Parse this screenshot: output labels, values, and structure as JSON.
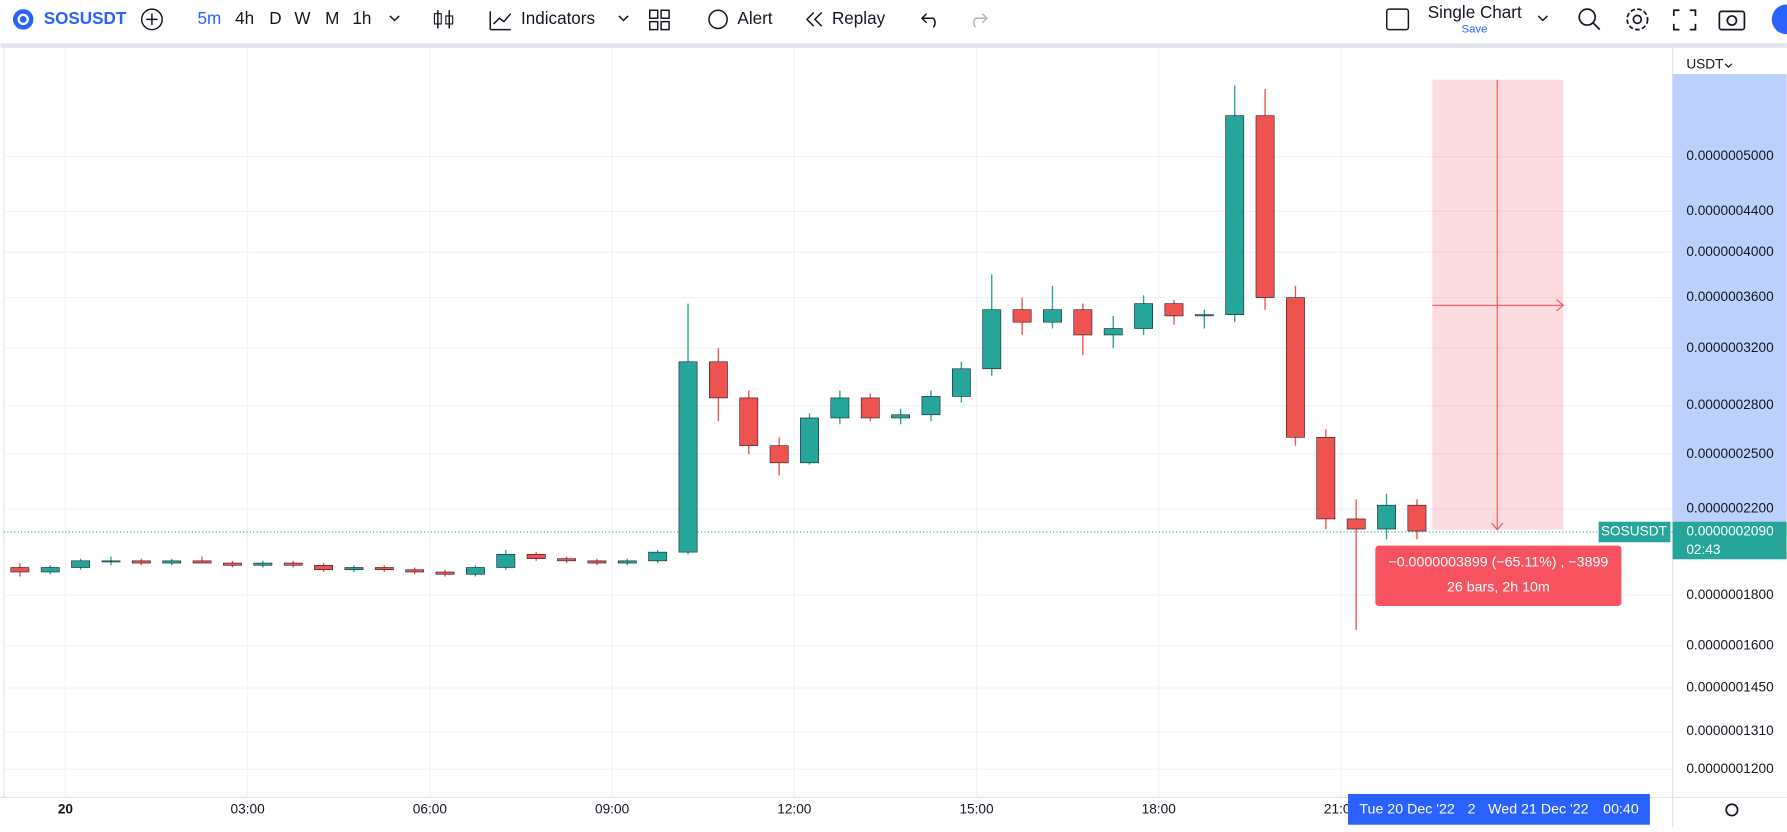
{
  "toolbar": {
    "symbol": "SOSUSDT",
    "intervals": [
      "5m",
      "4h",
      "D",
      "W",
      "M",
      "1h"
    ],
    "indicators": "Indicators",
    "alert": "Alert",
    "replay": "Replay",
    "layout": "Single Chart",
    "save": "Save"
  },
  "chart_data": {
    "type": "candlestick",
    "log_scale": true,
    "grid": true,
    "currency": "USDT",
    "up_color": "#26a69a",
    "down_color": "#ef5350",
    "x": [
      -1,
      -0.5,
      0,
      0.5,
      1,
      1.5,
      2,
      2.5,
      3,
      3.5,
      4,
      4.5,
      5,
      5.5,
      6,
      6.5,
      7,
      7.5,
      8,
      8.5,
      9,
      9.5,
      10,
      10.5,
      11,
      11.5,
      12,
      12.5,
      13,
      13.5,
      14,
      14.5,
      15,
      15.5,
      16,
      16.5,
      17,
      17.5,
      18,
      18.5,
      19,
      19.5,
      20,
      20.5,
      21,
      21.5,
      22
    ],
    "open": [
      1.92e-07,
      1.9e-07,
      1.92e-07,
      1.95e-07,
      1.95e-07,
      1.94e-07,
      1.95e-07,
      1.94e-07,
      1.93e-07,
      1.94e-07,
      1.93e-07,
      1.91e-07,
      1.92e-07,
      1.91e-07,
      1.9e-07,
      1.89e-07,
      1.92e-07,
      1.98e-07,
      1.96e-07,
      1.95e-07,
      1.94e-07,
      1.95e-07,
      1.99e-07,
      3.1e-07,
      2.85e-07,
      2.55e-07,
      2.45e-07,
      2.72e-07,
      2.85e-07,
      2.72e-07,
      2.74e-07,
      2.86e-07,
      3.05e-07,
      3.5e-07,
      3.4e-07,
      3.5e-07,
      3.3e-07,
      3.35e-07,
      3.55e-07,
      3.45e-07,
      3.46e-07,
      5.5e-07,
      3.6e-07,
      2.6e-07,
      2.15e-07,
      2.1e-07,
      2.22e-07
    ],
    "high": [
      1.94e-07,
      1.93e-07,
      1.96e-07,
      1.97e-07,
      1.96e-07,
      1.96e-07,
      1.97e-07,
      1.95e-07,
      1.95e-07,
      1.95e-07,
      1.94e-07,
      1.93e-07,
      1.93e-07,
      1.92e-07,
      1.91e-07,
      1.93e-07,
      2e-07,
      1.99e-07,
      1.97e-07,
      1.96e-07,
      1.96e-07,
      2e-07,
      3.55e-07,
      3.2e-07,
      2.9e-07,
      2.6e-07,
      2.75e-07,
      2.9e-07,
      2.88e-07,
      2.78e-07,
      2.9e-07,
      3.1e-07,
      3.8e-07,
      3.6e-07,
      3.7e-07,
      3.55e-07,
      3.45e-07,
      3.62e-07,
      3.58e-07,
      3.5e-07,
      5.9e-07,
      5.85e-07,
      3.7e-07,
      2.65e-07,
      2.25e-07,
      2.28e-07,
      2.25e-07
    ],
    "low": [
      1.88e-07,
      1.89e-07,
      1.91e-07,
      1.93e-07,
      1.93e-07,
      1.93e-07,
      1.94e-07,
      1.92e-07,
      1.92e-07,
      1.92e-07,
      1.9e-07,
      1.9e-07,
      1.9e-07,
      1.89e-07,
      1.88e-07,
      1.88e-07,
      1.91e-07,
      1.95e-07,
      1.94e-07,
      1.93e-07,
      1.93e-07,
      1.94e-07,
      1.98e-07,
      2.7e-07,
      2.5e-07,
      2.38e-07,
      2.44e-07,
      2.68e-07,
      2.7e-07,
      2.68e-07,
      2.7e-07,
      2.82e-07,
      3e-07,
      3.3e-07,
      3.35e-07,
      3.15e-07,
      3.2e-07,
      3.3e-07,
      3.38e-07,
      3.35e-07,
      3.4e-07,
      3.5e-07,
      2.55e-07,
      2.1e-07,
      1.66e-07,
      2.05e-07,
      2.05e-07
    ],
    "close": [
      1.9e-07,
      1.92e-07,
      1.95e-07,
      1.95e-07,
      1.94e-07,
      1.95e-07,
      1.94e-07,
      1.93e-07,
      1.94e-07,
      1.93e-07,
      1.91e-07,
      1.92e-07,
      1.91e-07,
      1.9e-07,
      1.89e-07,
      1.92e-07,
      1.98e-07,
      1.96e-07,
      1.95e-07,
      1.94e-07,
      1.95e-07,
      1.99e-07,
      3.1e-07,
      2.85e-07,
      2.55e-07,
      2.45e-07,
      2.72e-07,
      2.85e-07,
      2.72e-07,
      2.74e-07,
      2.86e-07,
      3.05e-07,
      3.5e-07,
      3.4e-07,
      3.5e-07,
      3.3e-07,
      3.35e-07,
      3.55e-07,
      3.45e-07,
      3.46e-07,
      5.5e-07,
      3.6e-07,
      2.6e-07,
      2.15e-07,
      2.1e-07,
      2.22e-07,
      2.09e-07
    ],
    "xlim": [
      -1.07,
      26.46
    ],
    "ylim": [
      1.124e-07,
      6.39e-07
    ],
    "xticks": [
      {
        "value": 0,
        "label": "20"
      },
      {
        "value": 3,
        "label": "03:00"
      },
      {
        "value": 6,
        "label": "06:00"
      },
      {
        "value": 9,
        "label": "09:00"
      },
      {
        "value": 12,
        "label": "12:00"
      },
      {
        "value": 15,
        "label": "15:00"
      },
      {
        "value": 18,
        "label": "18:00"
      },
      {
        "value": 21,
        "label": "21:00"
      }
    ],
    "yticks": [
      {
        "value": 1.2e-07,
        "label": "0.0000001200"
      },
      {
        "value": 1.31e-07,
        "label": "0.0000001310"
      },
      {
        "value": 1.45e-07,
        "label": "0.0000001450"
      },
      {
        "value": 1.6e-07,
        "label": "0.0000001600"
      },
      {
        "value": 1.8e-07,
        "label": "0.0000001800"
      },
      {
        "value": 2.2e-07,
        "label": "0.0000002200"
      },
      {
        "value": 2.5e-07,
        "label": "0.0000002500"
      },
      {
        "value": 2.8e-07,
        "label": "0.0000002800"
      },
      {
        "value": 3.2e-07,
        "label": "0.0000003200"
      },
      {
        "value": 3.6e-07,
        "label": "0.0000003600"
      },
      {
        "value": 4e-07,
        "label": "0.0000004000"
      },
      {
        "value": 4.4e-07,
        "label": "0.0000004400"
      },
      {
        "value": 5e-07,
        "label": "0.0000005000"
      }
    ],
    "last_price": {
      "symbol": "SOSUSDT",
      "price": "0.0000002090",
      "countdown": "02:43"
    },
    "measure": {
      "change": "−0.0000003899 (−65.11%) , −3899",
      "span": "26 bars, 2h 10m"
    },
    "crosshair": {
      "start_date": "Tue 20 Dec '22",
      "start_time": "2",
      "end_date": "Wed 21 Dec '22",
      "end_time": "00:40"
    }
  }
}
